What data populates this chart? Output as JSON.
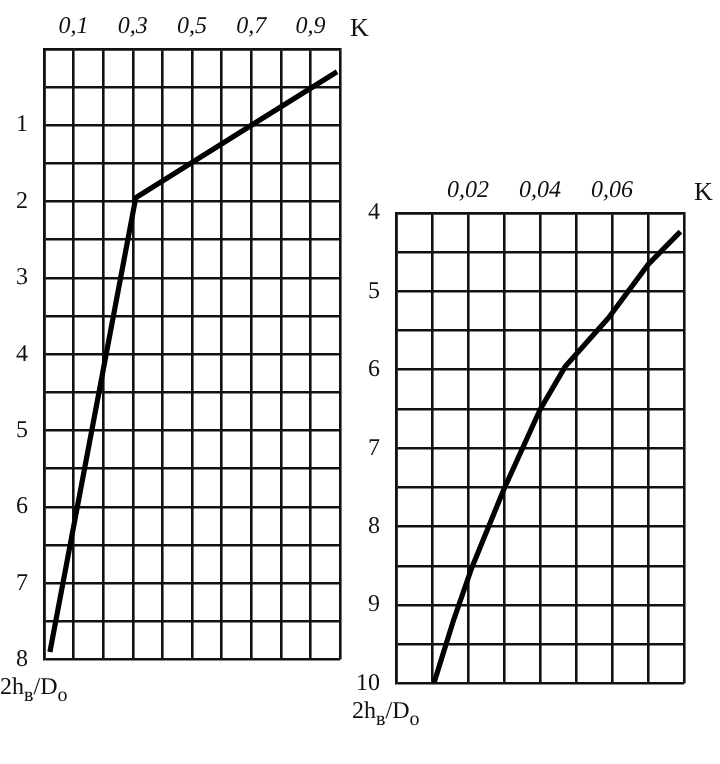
{
  "chart_data": [
    {
      "type": "line",
      "xlabel": "K",
      "ylabel": "2h$_{в}$/D$_{о}$",
      "grid": true,
      "marker": "none",
      "x": [
        0.99,
        0.31,
        0.02
      ],
      "series": [
        {
          "color": "#000000",
          "values": [
            0.3,
            1.95,
            7.9
          ]
        }
      ],
      "xlim": [
        0,
        1
      ],
      "xticks": [
        {
          "value": 0,
          "label": null
        },
        {
          "value": 0.1,
          "label": "0,1"
        },
        {
          "value": 0.2,
          "label": null
        },
        {
          "value": 0.3,
          "label": "0,3"
        },
        {
          "value": 0.4,
          "label": null
        },
        {
          "value": 0.5,
          "label": "0,5"
        },
        {
          "value": 0.6,
          "label": null
        },
        {
          "value": 0.7,
          "label": "0,7"
        },
        {
          "value": 0.8,
          "label": null
        },
        {
          "value": 0.9,
          "label": "0,9"
        },
        {
          "value": 1,
          "label": null
        }
      ],
      "ylim": [
        8,
        0
      ],
      "yticks": [
        {
          "value": 0,
          "label": null
        },
        {
          "value": 0.5,
          "label": null
        },
        1,
        {
          "value": 1.5,
          "label": null
        },
        2,
        {
          "value": 2.5,
          "label": null
        },
        3,
        {
          "value": 3.5,
          "label": null
        },
        4,
        {
          "value": 4.5,
          "label": null
        },
        5,
        {
          "value": 5.5,
          "label": null
        },
        6,
        {
          "value": 6.5,
          "label": null
        },
        7,
        {
          "value": 7.5,
          "label": null
        },
        8
      ]
    },
    {
      "type": "line",
      "xlabel": "K",
      "ylabel": "2h$_{в}$/D$_{о}$",
      "grid": true,
      "marker": "none",
      "x": [
        0.079,
        0.07,
        0.059,
        0.047,
        0.04,
        0.03,
        0.021,
        0.016,
        0.0105
      ],
      "series": [
        {
          "color": "#000000",
          "values": [
            4.24,
            4.66,
            5.34,
            5.96,
            6.51,
            7.52,
            8.53,
            9.19,
            10
          ]
        }
      ],
      "xlim": [
        0,
        0.08
      ],
      "xticks": [
        {
          "value": 0,
          "label": null
        },
        {
          "value": 0.01,
          "label": null
        },
        {
          "value": 0.02,
          "label": "0,02"
        },
        {
          "value": 0.03,
          "label": null
        },
        {
          "value": 0.04,
          "label": "0,04"
        },
        {
          "value": 0.05,
          "label": null
        },
        {
          "value": 0.06,
          "label": "0,06"
        },
        {
          "value": 0.07,
          "label": null
        },
        {
          "value": 0.08,
          "label": null
        }
      ],
      "ylim": [
        10,
        4
      ],
      "yticks": [
        4,
        {
          "value": 4.5,
          "label": null
        },
        5,
        {
          "value": 5.5,
          "label": null
        },
        6,
        {
          "value": 6.5,
          "label": null
        },
        7,
        {
          "value": 7.5,
          "label": null
        },
        8,
        {
          "value": 8.5,
          "label": null
        },
        9,
        {
          "value": 9.5,
          "label": null
        },
        10
      ]
    }
  ]
}
